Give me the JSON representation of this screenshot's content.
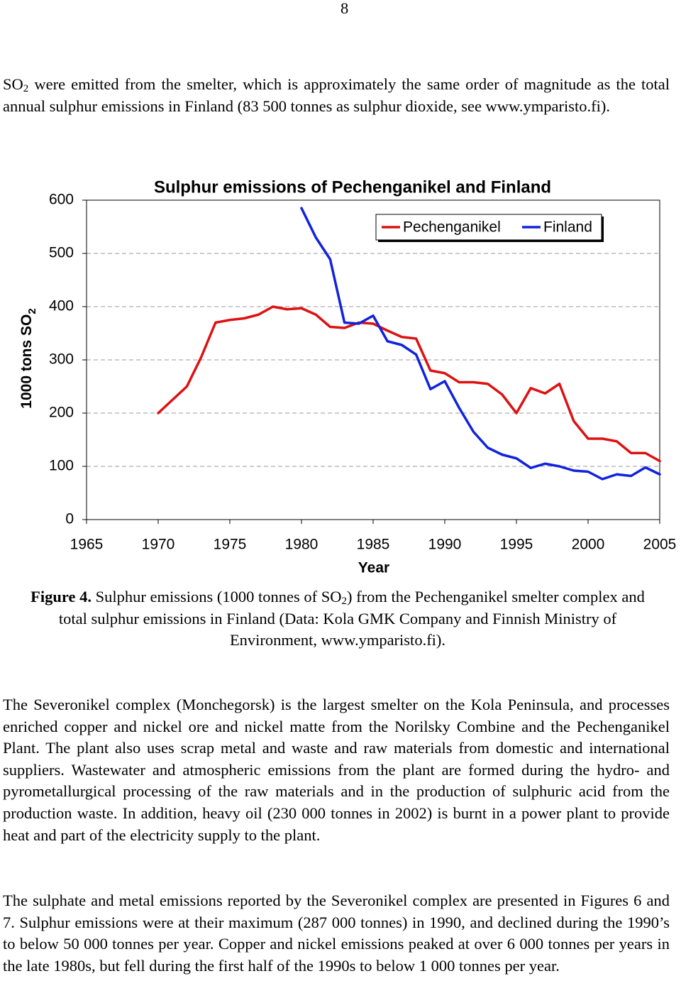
{
  "page_number": "8",
  "intro": {
    "parts": [
      "SO",
      "2",
      " were emitted from the smelter, which is approximately the same order of magnitude as the total annual sulphur emissions in Finland (83 500 tonnes as sulphur dioxide, see www.ymparisto.fi)."
    ]
  },
  "chart_data": {
    "type": "line",
    "title": "Sulphur emissions of Pechenganikel and Finland",
    "xlabel": "Year",
    "ylabel": "1000 tons SO",
    "ylabel_sub": "2",
    "x": [
      1970,
      1971,
      1972,
      1973,
      1974,
      1975,
      1976,
      1977,
      1978,
      1979,
      1980,
      1981,
      1982,
      1983,
      1984,
      1985,
      1986,
      1987,
      1988,
      1989,
      1990,
      1991,
      1992,
      1993,
      1994,
      1995,
      1996,
      1997,
      1998,
      1999,
      2000,
      2001,
      2002,
      2003,
      2004,
      2005
    ],
    "series": [
      {
        "name": "Pechenganikel",
        "color": "#dd1111",
        "values": [
          200,
          225,
          250,
          305,
          370,
          375,
          378,
          385,
          400,
          395,
          397,
          385,
          362,
          360,
          370,
          368,
          355,
          343,
          340,
          280,
          275,
          258,
          258,
          255,
          235,
          200,
          247,
          237,
          255,
          185,
          152,
          152,
          147,
          125,
          125,
          110
        ]
      },
      {
        "name": "Finland",
        "color": "#1122dd",
        "values": [
          null,
          null,
          null,
          null,
          null,
          null,
          null,
          null,
          null,
          null,
          585,
          530,
          489,
          370,
          368,
          383,
          335,
          328,
          310,
          245,
          260,
          210,
          165,
          135,
          122,
          115,
          97,
          105,
          100,
          92,
          90,
          76,
          85,
          82,
          98,
          85
        ]
      }
    ],
    "xlim": [
      1965,
      2005
    ],
    "xticks": [
      1965,
      1970,
      1975,
      1980,
      1985,
      1990,
      1995,
      2000,
      2005
    ],
    "ylim": [
      0,
      600
    ],
    "yticks": [
      0,
      100,
      200,
      300,
      400,
      500,
      600
    ],
    "grid": true,
    "legend": "top-right"
  },
  "caption": {
    "label": "Figure 4.",
    "parts": [
      " Sulphur emissions (1000 tonnes of SO",
      "2",
      ") from the Pechenganikel smelter complex and total sulphur emissions in Finland (Data: Kola GMK Company and Finnish Ministry of Environment, www.ymparisto.fi)."
    ]
  },
  "paragraphs": [
    "The Severonikel complex (Monchegorsk) is the largest smelter on the Kola Peninsula, and processes enriched copper and nickel ore and nickel matte from the Norilsky Combine and the Pechenganikel Plant. The plant also uses scrap metal and waste and raw materials from domestic and international suppliers. Wastewater and atmospheric emissions from the plant are formed during the hydro- and pyrometallurgical processing of the raw materials and in the production of sulphuric acid from the production waste. In addition, heavy oil (230 000 tonnes in 2002) is burnt in a power plant to provide heat and part of the electricity supply to the plant.",
    "The sulphate and metal emissions reported by the Severonikel complex are presented in Figures 6 and 7. Sulphur emissions were at their maximum (287 000 tonnes) in 1990, and declined during the 1990’s to below 50 000 tonnes per year. Copper and nickel emissions peaked at over 6 000 tonnes per years in the late 1980s, but fell during the first half of the 1990s to below  1 000 tonnes per year."
  ]
}
